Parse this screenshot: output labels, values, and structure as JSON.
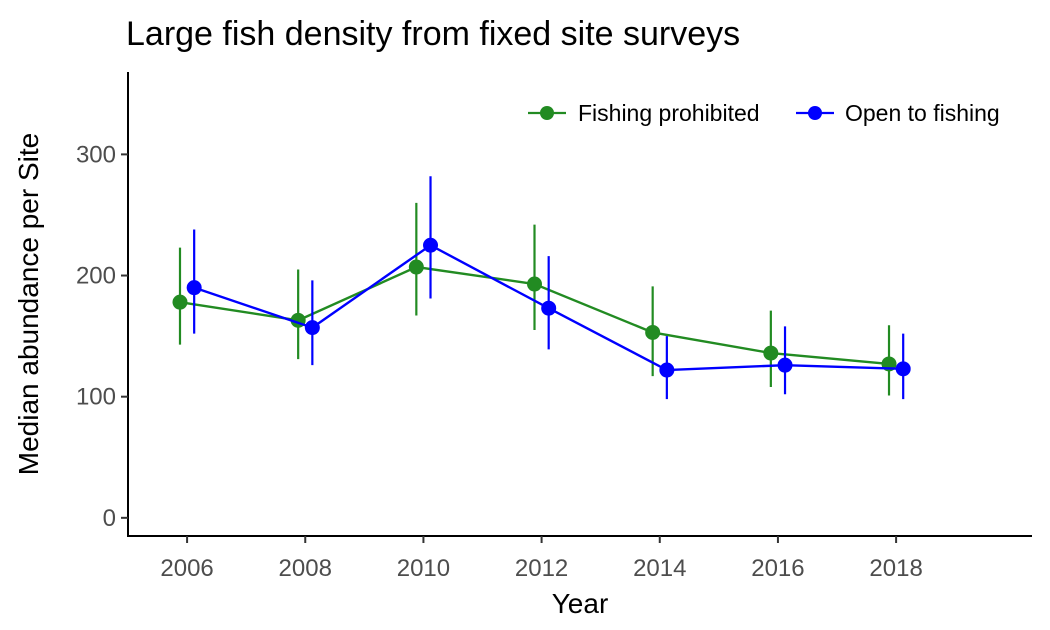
{
  "chart_data": {
    "type": "line",
    "title": "Large fish density from fixed site surveys",
    "xlabel": "Year",
    "ylabel": "Median abundance per Site",
    "x": [
      2006,
      2008,
      2010,
      2012,
      2014,
      2016,
      2018
    ],
    "xticks": [
      "2006",
      "2008",
      "2010",
      "2012",
      "2014",
      "2016",
      "2018"
    ],
    "yticks": [
      "0",
      "100",
      "200",
      "300"
    ],
    "xlim": [
      2005,
      2020.3
    ],
    "ylim": [
      -15,
      368
    ],
    "grid": false,
    "legend_position": "top-right",
    "series": [
      {
        "name": "Fishing prohibited",
        "color": "#228B22",
        "values": [
          178,
          163,
          207,
          193,
          153,
          136,
          127
        ],
        "lower": [
          143,
          131,
          167,
          155,
          117,
          108,
          101
        ],
        "upper": [
          223,
          205,
          260,
          242,
          191,
          171,
          159
        ]
      },
      {
        "name": "Open to fishing",
        "color": "#0000FF",
        "values": [
          190,
          157,
          225,
          173,
          122,
          126,
          123
        ],
        "lower": [
          152,
          126,
          181,
          139,
          98,
          102,
          98
        ],
        "upper": [
          238,
          196,
          282,
          216,
          150,
          158,
          152
        ]
      }
    ]
  }
}
